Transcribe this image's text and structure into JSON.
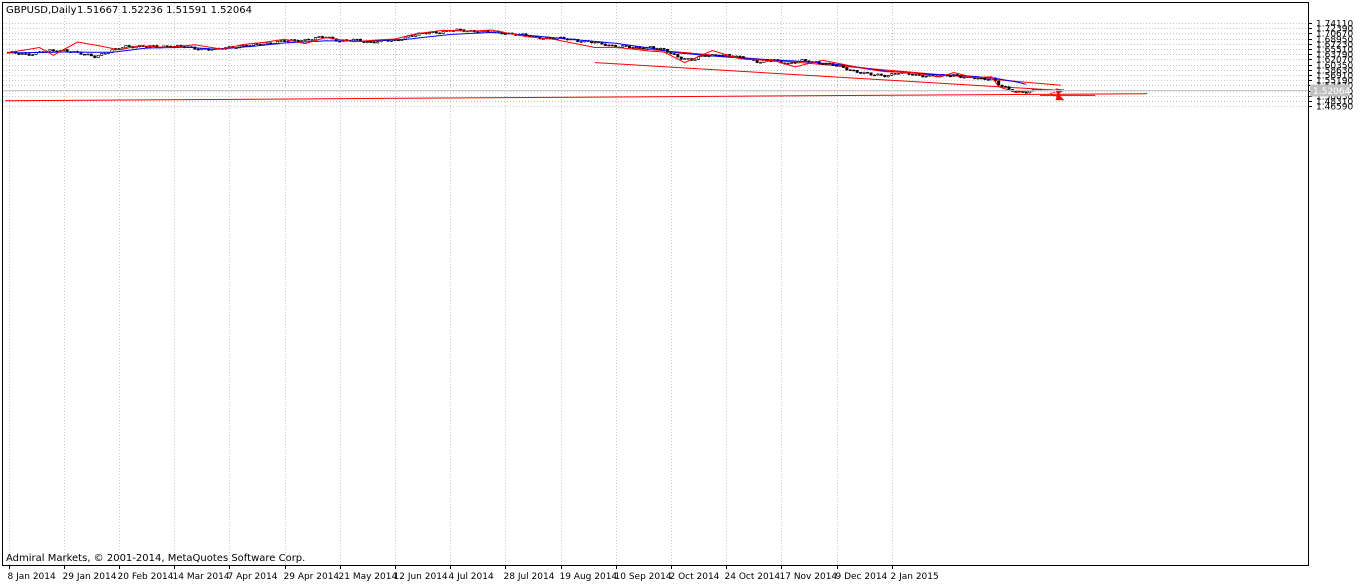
{
  "window": {
    "symbol_title": "GBPUSD,Daily",
    "ohlc": "1.51667 1.52236 1.51591 1.52064",
    "copyright": "Admiral Markets, © 2001-2014, MetaQuotes Software Corp.",
    "current_price": "1.52064"
  },
  "colors": {
    "background": "#ffffff",
    "grid": "#c6c6c6",
    "candle": "#000000",
    "moving_average": "#0000ff",
    "zigzag": "#ff0000",
    "channel": "#ff0000",
    "arrows": "#ff0000",
    "price_label_bg": "#c0c0c0"
  },
  "chart_data": {
    "type": "candlestick",
    "title": "GBPUSD,Daily",
    "y_ticks": [
      1.7411,
      1.7239,
      1.7067,
      1.6895,
      1.6723,
      1.6551,
      1.6379,
      1.6207,
      1.6035,
      1.5863,
      1.5691,
      1.5519,
      1.5347,
      1.5175,
      1.5003,
      1.4831,
      1.4659
    ],
    "y_tick_labels": [
      "1.74110",
      "1.72390",
      "1.70670",
      "1.68950",
      "1.67230",
      "1.65510",
      "1.63790",
      "1.62070",
      "1.60350",
      "1.58630",
      "1.56910",
      "1.55190",
      "1.53470",
      "1.51750",
      "1.50030",
      "1.48310",
      "1.46590"
    ],
    "ylim": [
      1.449,
      1.758
    ],
    "x_labels": [
      "8 Jan 2014",
      "29 Jan 2014",
      "20 Feb 2014",
      "14 Mar 2014",
      "7 Apr 2014",
      "29 Apr 2014",
      "21 May 2014",
      "12 Jun 2014",
      "4 Jul 2014",
      "28 Jul 2014",
      "19 Aug 2014",
      "10 Sep 2014",
      "2 Oct 2014",
      "24 Oct 2014",
      "17 Nov 2014",
      "9 Dec 2014",
      "2 Jan 2015"
    ],
    "bars_per_label": 16,
    "price_anchors": [
      [
        0,
        1.642
      ],
      [
        6,
        1.638
      ],
      [
        12,
        1.648
      ],
      [
        16,
        1.652
      ],
      [
        20,
        1.64
      ],
      [
        25,
        1.632
      ],
      [
        30,
        1.648
      ],
      [
        34,
        1.665
      ],
      [
        40,
        1.662
      ],
      [
        46,
        1.665
      ],
      [
        52,
        1.66
      ],
      [
        56,
        1.656
      ],
      [
        60,
        1.652
      ],
      [
        64,
        1.662
      ],
      [
        70,
        1.666
      ],
      [
        76,
        1.676
      ],
      [
        82,
        1.682
      ],
      [
        88,
        1.688
      ],
      [
        92,
        1.695
      ],
      [
        96,
        1.683
      ],
      [
        100,
        1.684
      ],
      [
        104,
        1.678
      ],
      [
        108,
        1.682
      ],
      [
        112,
        1.681
      ],
      [
        116,
        1.699
      ],
      [
        122,
        1.708
      ],
      [
        128,
        1.716
      ],
      [
        134,
        1.715
      ],
      [
        140,
        1.711
      ],
      [
        146,
        1.706
      ],
      [
        152,
        1.695
      ],
      [
        158,
        1.69
      ],
      [
        164,
        1.686
      ],
      [
        170,
        1.675
      ],
      [
        176,
        1.665
      ],
      [
        182,
        1.658
      ],
      [
        186,
        1.662
      ],
      [
        190,
        1.65
      ],
      [
        194,
        1.63
      ],
      [
        198,
        1.618
      ],
      [
        202,
        1.633
      ],
      [
        206,
        1.637
      ],
      [
        210,
        1.629
      ],
      [
        214,
        1.625
      ],
      [
        218,
        1.61
      ],
      [
        222,
        1.618
      ],
      [
        226,
        1.607
      ],
      [
        230,
        1.615
      ],
      [
        234,
        1.612
      ],
      [
        238,
        1.604
      ],
      [
        242,
        1.593
      ],
      [
        246,
        1.58
      ],
      [
        250,
        1.569
      ],
      [
        254,
        1.568
      ],
      [
        258,
        1.576
      ],
      [
        262,
        1.57
      ],
      [
        266,
        1.567
      ],
      [
        270,
        1.564
      ],
      [
        274,
        1.57
      ],
      [
        278,
        1.56
      ],
      [
        282,
        1.555
      ],
      [
        285,
        1.559
      ],
      [
        287,
        1.538
      ],
      [
        290,
        1.518
      ],
      [
        293,
        1.513
      ],
      [
        296,
        1.516
      ],
      [
        299,
        1.5206
      ]
    ],
    "moving_average_anchors": [
      [
        0,
        1.642
      ],
      [
        16,
        1.645
      ],
      [
        30,
        1.644
      ],
      [
        40,
        1.658
      ],
      [
        52,
        1.661
      ],
      [
        60,
        1.654
      ],
      [
        70,
        1.663
      ],
      [
        80,
        1.675
      ],
      [
        92,
        1.682
      ],
      [
        104,
        1.681
      ],
      [
        116,
        1.688
      ],
      [
        128,
        1.703
      ],
      [
        140,
        1.71
      ],
      [
        152,
        1.699
      ],
      [
        164,
        1.686
      ],
      [
        176,
        1.674
      ],
      [
        186,
        1.658
      ],
      [
        194,
        1.642
      ],
      [
        206,
        1.63
      ],
      [
        218,
        1.621
      ],
      [
        230,
        1.614
      ],
      [
        242,
        1.602
      ],
      [
        254,
        1.582
      ],
      [
        266,
        1.572
      ],
      [
        278,
        1.566
      ],
      [
        286,
        1.558
      ],
      [
        292,
        1.546
      ],
      [
        295,
        1.538
      ]
    ],
    "zigzag_points": [
      [
        0,
        1.643
      ],
      [
        9,
        1.66
      ],
      [
        13,
        1.634
      ],
      [
        20,
        1.678
      ],
      [
        27,
        1.664
      ],
      [
        32,
        1.652
      ],
      [
        38,
        1.666
      ],
      [
        46,
        1.66
      ],
      [
        54,
        1.669
      ],
      [
        62,
        1.654
      ],
      [
        68,
        1.67
      ],
      [
        74,
        1.677
      ],
      [
        80,
        1.687
      ],
      [
        86,
        1.673
      ],
      [
        92,
        1.693
      ],
      [
        100,
        1.679
      ],
      [
        106,
        1.684
      ],
      [
        112,
        1.688
      ],
      [
        118,
        1.705
      ],
      [
        126,
        1.717
      ],
      [
        134,
        1.714
      ],
      [
        140,
        1.718
      ],
      [
        150,
        1.696
      ],
      [
        158,
        1.687
      ],
      [
        170,
        1.66
      ],
      [
        176,
        1.661
      ],
      [
        186,
        1.648
      ],
      [
        190,
        1.645
      ],
      [
        196,
        1.61
      ],
      [
        204,
        1.65
      ],
      [
        212,
        1.623
      ],
      [
        222,
        1.616
      ],
      [
        228,
        1.596
      ],
      [
        236,
        1.618
      ],
      [
        242,
        1.604
      ],
      [
        248,
        1.59
      ],
      [
        254,
        1.58
      ],
      [
        262,
        1.576
      ],
      [
        270,
        1.562
      ],
      [
        274,
        1.577
      ],
      [
        280,
        1.56
      ],
      [
        285,
        1.563
      ],
      [
        287,
        1.53
      ],
      [
        292,
        1.511
      ],
      [
        299,
        1.5206
      ]
    ],
    "channel_upper": {
      "from": [
        181,
        1.658
      ],
      "to": [
        305,
        1.535
      ]
    },
    "channel_lower": {
      "from": [
        170,
        1.61
      ],
      "to": [
        306,
        1.517
      ]
    },
    "long_support": {
      "from": [
        -1,
        1.4836
      ],
      "to": [
        330,
        1.507
      ]
    },
    "short_support": {
      "from": [
        299,
        1.5015
      ],
      "to": [
        315,
        1.5015
      ]
    },
    "arrow_up": {
      "from": [
        302,
        1.508
      ],
      "to": [
        306,
        1.52
      ]
    },
    "arrow_down": {
      "from": [
        302,
        1.506
      ],
      "to": [
        306,
        1.485
      ]
    }
  }
}
